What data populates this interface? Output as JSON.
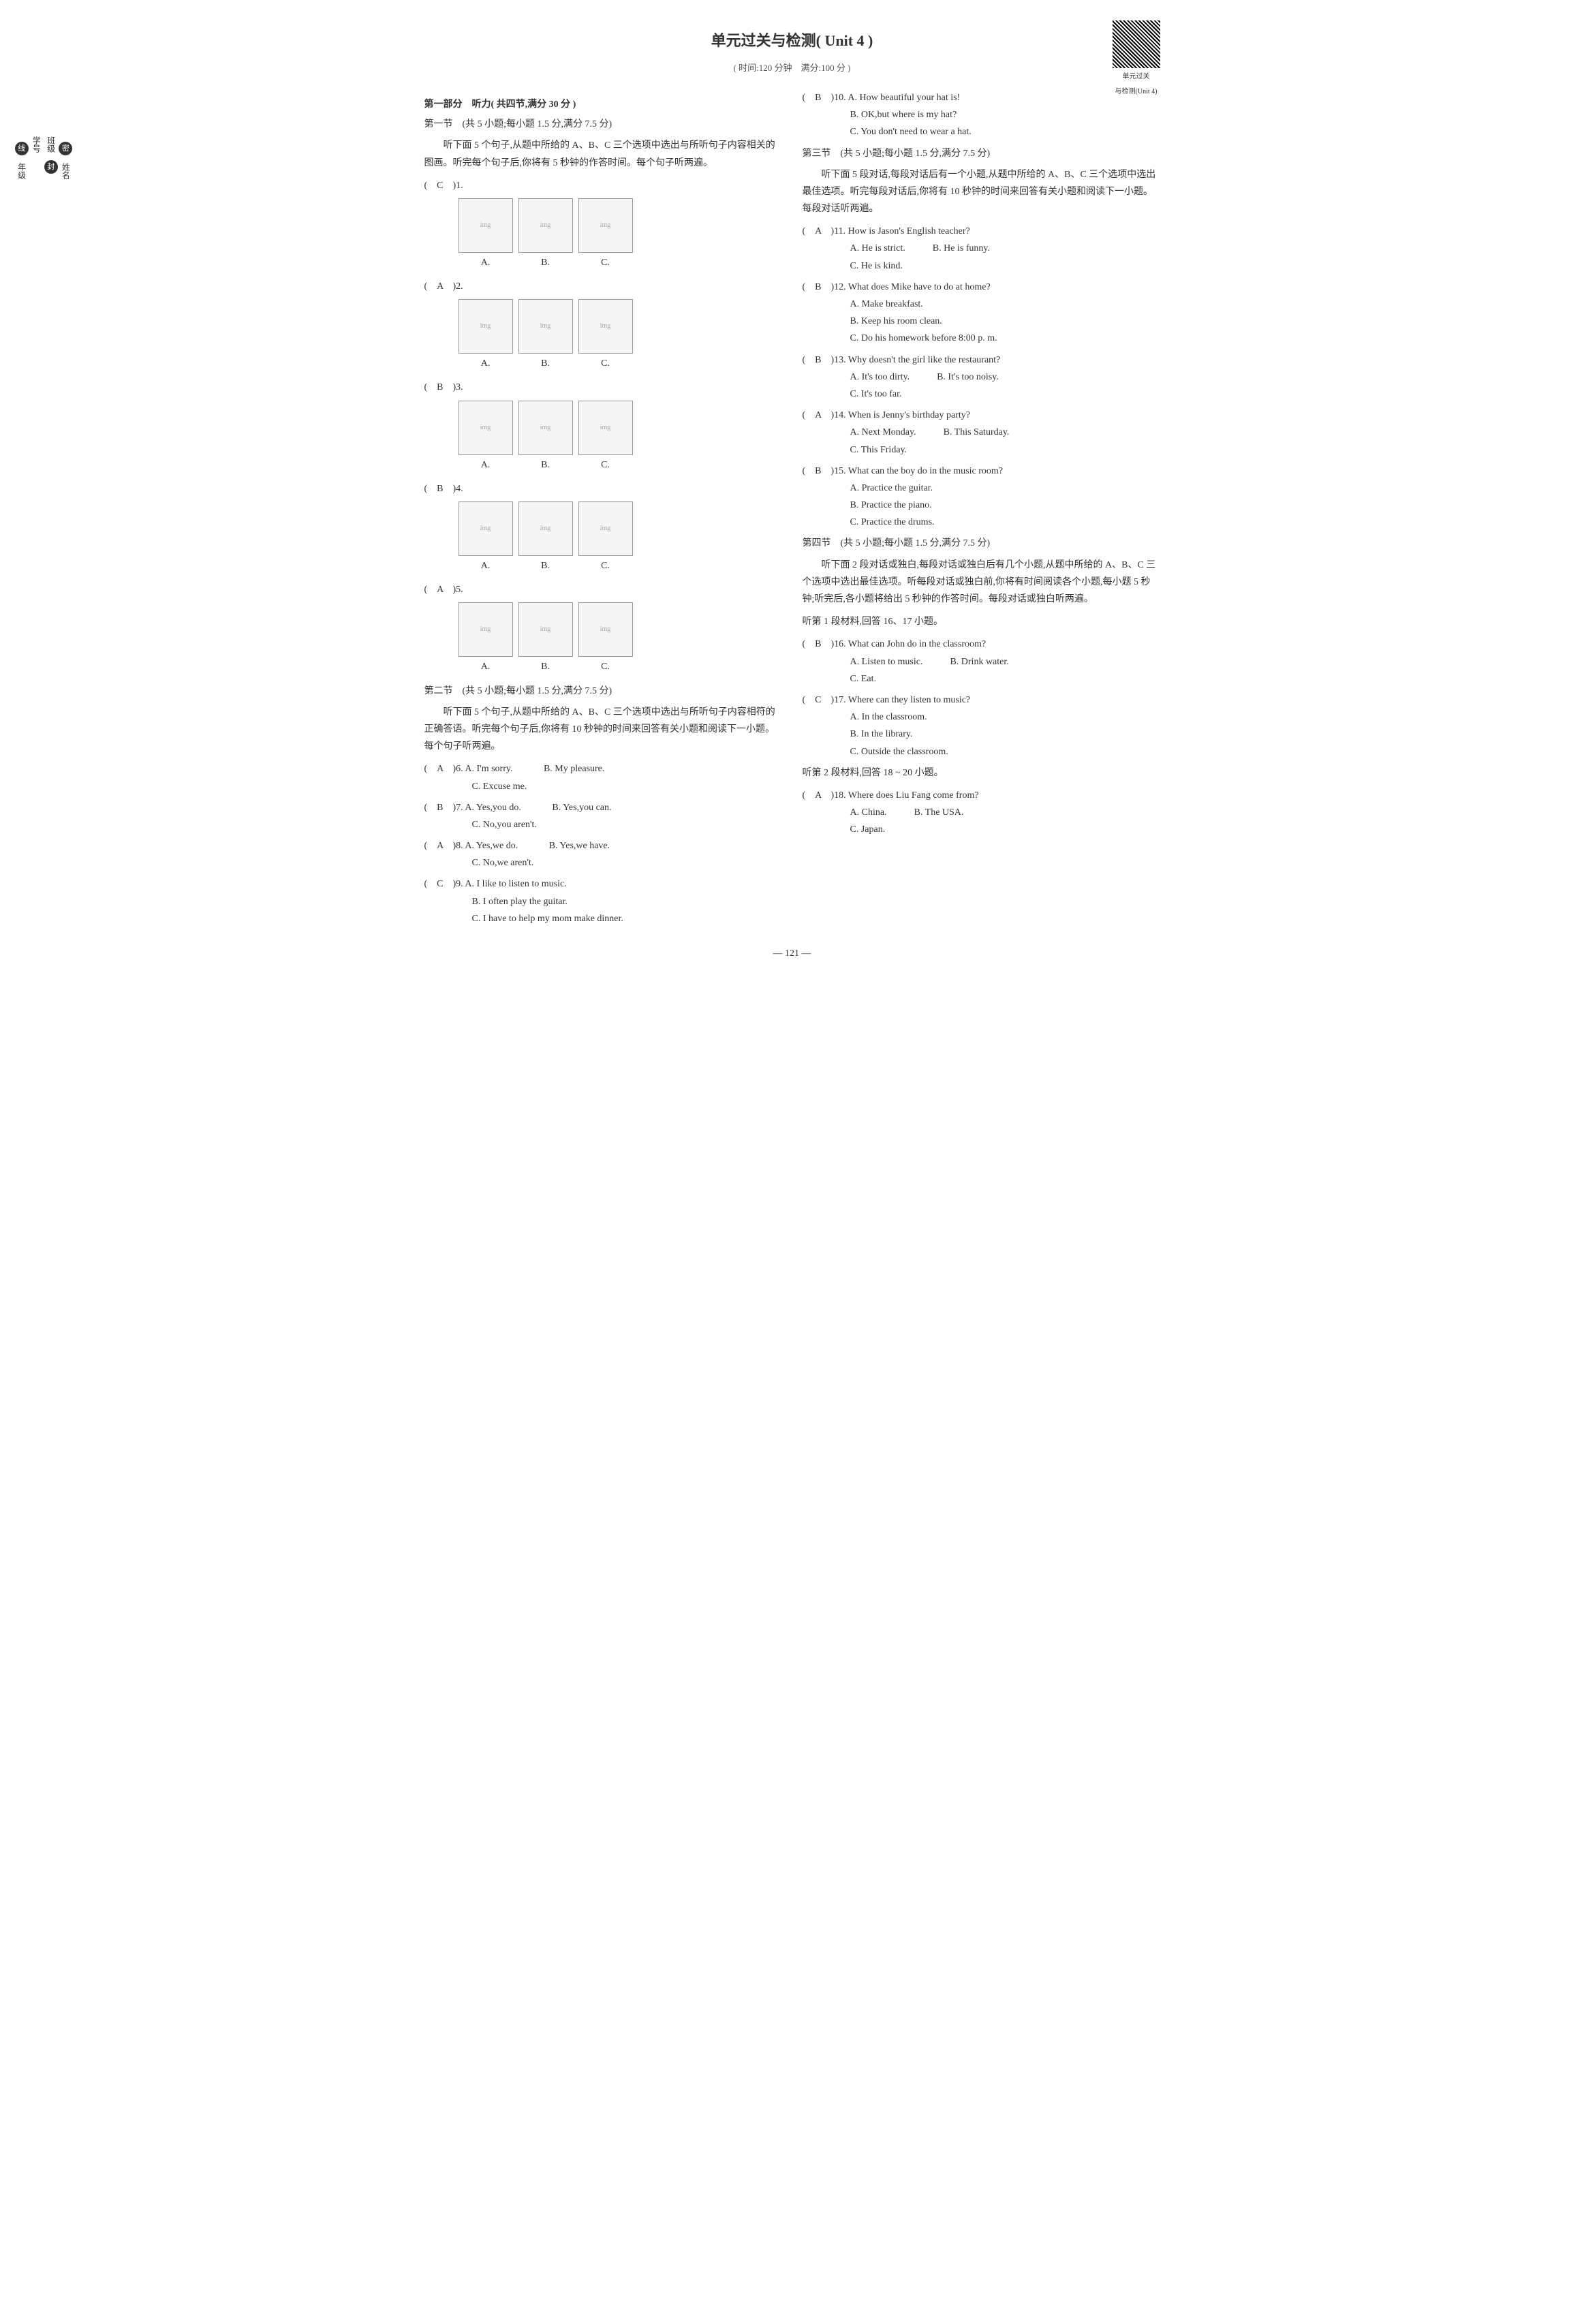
{
  "title": "单元过关与检测( Unit 4 )",
  "subtitle": "( 时间:120 分钟　满分:100 分 )",
  "qr_label1": "单元过关",
  "qr_label2": "与检测(Unit 4)",
  "part1": {
    "title": "第一部分　听力( 共四节,满分 30 分 )",
    "sec1_title": "第一节　(共 5 小题;每小题 1.5 分,满分 7.5 分)",
    "sec1_desc": "听下面 5 个句子,从题中所给的 A、B、C 三个选项中选出与所听句子内容相关的图画。听完每个句子后,你将有 5 秒钟的作答时间。每个句子听两遍。",
    "q1": {
      "num": "(　C　)1.",
      "labels": [
        "A.",
        "B.",
        "C."
      ]
    },
    "q2": {
      "num": "(　A　)2.",
      "labels": [
        "A.",
        "B.",
        "C."
      ]
    },
    "q3": {
      "num": "(　B　)3.",
      "labels": [
        "A.",
        "B.",
        "C."
      ]
    },
    "q4": {
      "num": "(　B　)4.",
      "labels": [
        "A.",
        "B.",
        "C."
      ]
    },
    "q5": {
      "num": "(　A　)5.",
      "labels": [
        "A.",
        "B.",
        "C."
      ]
    },
    "sec2_title": "第二节　(共 5 小题;每小题 1.5 分,满分 7.5 分)",
    "sec2_desc": "听下面 5 个句子,从题中所给的 A、B、C 三个选项中选出与所听句子内容相符的正确答语。听完每个句子后,你将有 10 秒钟的时间来回答有关小题和阅读下一小题。每个句子听两遍。",
    "q6": {
      "num": "(　A　)6.",
      "a": "A. I'm sorry.",
      "b": "B. My pleasure.",
      "c": "C. Excuse me."
    },
    "q7": {
      "num": "(　B　)7.",
      "a": "A. Yes,you do.",
      "b": "B. Yes,you can.",
      "c": "C. No,you aren't."
    },
    "q8": {
      "num": "(　A　)8.",
      "a": "A. Yes,we do.",
      "b": "B. Yes,we have.",
      "c": "C. No,we aren't."
    },
    "q9": {
      "num": "(　C　)9.",
      "a": "A. I like to listen to music.",
      "b": "B. I often play the guitar.",
      "c": "C. I have to help my mom make dinner."
    },
    "q10": {
      "num": "(　B　)10.",
      "a": "A. How beautiful your hat is!",
      "b": "B. OK,but where is my hat?",
      "c": "C. You don't need to wear a hat."
    },
    "sec3_title": "第三节　(共 5 小题;每小题 1.5 分,满分 7.5 分)",
    "sec3_desc": "听下面 5 段对话,每段对话后有一个小题,从题中所给的 A、B、C 三个选项中选出最佳选项。听完每段对话后,你将有 10 秒钟的时间来回答有关小题和阅读下一小题。每段对话听两遍。",
    "q11": {
      "num": "(　A　)11.",
      "q": "How is Jason's English teacher?",
      "a": "A. He is strict.",
      "b": "B. He is funny.",
      "c": "C. He is kind."
    },
    "q12": {
      "num": "(　B　)12.",
      "q": "What does Mike have to do at home?",
      "a": "A. Make breakfast.",
      "b": "B. Keep his room clean.",
      "c": "C. Do his homework before 8:00 p. m."
    },
    "q13": {
      "num": "(　B　)13.",
      "q": "Why doesn't the girl like the restaurant?",
      "a": "A. It's too dirty.",
      "b": "B. It's too noisy.",
      "c": "C. It's too far."
    },
    "q14": {
      "num": "(　A　)14.",
      "q": "When is Jenny's birthday party?",
      "a": "A. Next Monday.",
      "b": "B. This Saturday.",
      "c": "C. This Friday."
    },
    "q15": {
      "num": "(　B　)15.",
      "q": "What can the boy do in the music room?",
      "a": "A. Practice the guitar.",
      "b": "B. Practice the piano.",
      "c": "C. Practice the drums."
    },
    "sec4_title": "第四节　(共 5 小题;每小题 1.5 分,满分 7.5 分)",
    "sec4_desc": "听下面 2 段对话或独白,每段对话或独白后有几个小题,从题中所给的 A、B、C 三个选项中选出最佳选项。听每段对话或独白前,你将有时间阅读各个小题,每小题 5 秒钟;听完后,各小题将给出 5 秒钟的作答时间。每段对话或独白听两遍。",
    "passage1_label": "听第 1 段材料,回答 16、17 小题。",
    "q16": {
      "num": "(　B　)16.",
      "q": "What can John do in the classroom?",
      "a": "A. Listen to music.",
      "b": "B. Drink water.",
      "c": "C. Eat."
    },
    "q17": {
      "num": "(　C　)17.",
      "q": "Where can they listen to music?",
      "a": "A. In the classroom.",
      "b": "B. In the library.",
      "c": "C. Outside the classroom."
    },
    "passage2_label": "听第 2 段材料,回答 18 ~ 20 小题。",
    "q18": {
      "num": "(　A　)18.",
      "q": "Where does Liu Fang come from?",
      "a": "A. China.",
      "b": "B. The USA.",
      "c": "C. Japan."
    }
  },
  "margin": {
    "name": "姓名",
    "class": "班级",
    "number": "学号",
    "grade": "年级",
    "mi": "密",
    "feng": "封",
    "xian": "线"
  },
  "page_num": "— 121 —"
}
